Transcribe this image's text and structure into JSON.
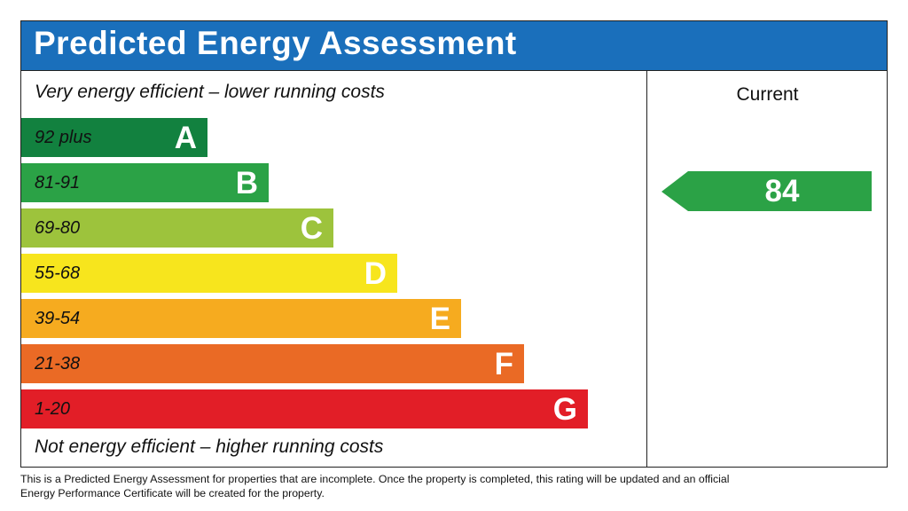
{
  "title": "Predicted Energy Assessment",
  "top_note": "Very energy efficient – lower running costs",
  "bottom_note": "Not energy efficient – higher running costs",
  "current_label": "Current",
  "current_rating": 84,
  "current_color": "#2ba246",
  "bands": [
    {
      "range": "92 plus",
      "letter": "A",
      "color": "#12813f"
    },
    {
      "range": "81-91",
      "letter": "B",
      "color": "#2ba246"
    },
    {
      "range": "69-80",
      "letter": "C",
      "color": "#9dc33c"
    },
    {
      "range": "55-68",
      "letter": "D",
      "color": "#f7e51d"
    },
    {
      "range": "39-54",
      "letter": "E",
      "color": "#f6ab1f"
    },
    {
      "range": "21-38",
      "letter": "F",
      "color": "#ea6a25"
    },
    {
      "range": "1-20",
      "letter": "G",
      "color": "#e21e27"
    }
  ],
  "footer": "This is a Predicted Energy Assessment for properties that are incomplete. Once the property is completed, this rating will be updated and an official Energy Performance Certificate will be created for the property."
}
